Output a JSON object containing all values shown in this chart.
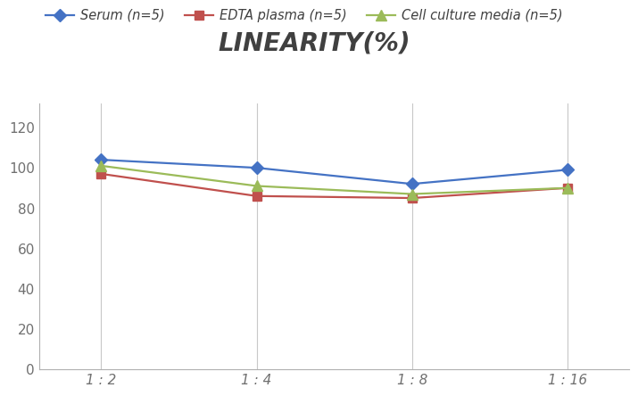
{
  "title": "LINEARITY(%)",
  "x_labels": [
    "1 : 2",
    "1 : 4",
    "1 : 8",
    "1 : 16"
  ],
  "x_positions": [
    0,
    1,
    2,
    3
  ],
  "series": [
    {
      "name": "Serum (n=5)",
      "values": [
        104,
        100,
        92,
        99
      ],
      "color": "#4472C4",
      "marker": "D",
      "marker_size": 7
    },
    {
      "name": "EDTA plasma (n=5)",
      "values": [
        97,
        86,
        85,
        90
      ],
      "color": "#C0504D",
      "marker": "s",
      "marker_size": 7
    },
    {
      "name": "Cell culture media (n=5)",
      "values": [
        101,
        91,
        87,
        90
      ],
      "color": "#9BBB59",
      "marker": "^",
      "marker_size": 8
    }
  ],
  "ylim": [
    0,
    132
  ],
  "yticks": [
    0,
    20,
    40,
    60,
    80,
    100,
    120
  ],
  "background_color": "#ffffff",
  "title_fontsize": 20,
  "legend_fontsize": 10.5,
  "tick_fontsize": 11,
  "grid_color": "#c8c8c8",
  "grid_linestyle": "-",
  "grid_linewidth": 0.8,
  "title_color": "#404040",
  "tick_color": "#707070",
  "spine_color": "#b0b0b0"
}
